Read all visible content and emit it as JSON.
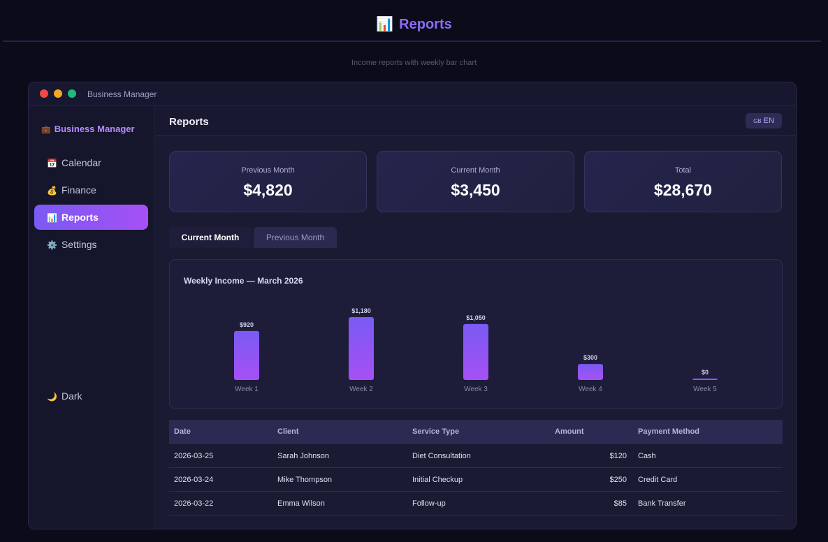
{
  "page": {
    "emoji": "📊",
    "title": "Reports",
    "subtitle": "Income reports with weekly bar chart"
  },
  "window": {
    "title": "Business Manager"
  },
  "sidebar": {
    "brand_emoji": "💼",
    "brand": "Business Manager",
    "items": [
      {
        "emoji": "📅",
        "label": "Calendar"
      },
      {
        "emoji": "💰",
        "label": "Finance"
      },
      {
        "emoji": "📊",
        "label": "Reports"
      },
      {
        "emoji": "⚙️",
        "label": "Settings"
      }
    ],
    "active_index": 2,
    "theme_emoji": "🌙",
    "theme_label": "Dark"
  },
  "main": {
    "title": "Reports",
    "lang_flag": "GB",
    "lang_label": "EN"
  },
  "cards": [
    {
      "label": "Previous Month",
      "value": "$4,820"
    },
    {
      "label": "Current Month",
      "value": "$3,450"
    },
    {
      "label": "Total",
      "value": "$28,670"
    }
  ],
  "tabs": [
    {
      "label": "Current Month",
      "active": true
    },
    {
      "label": "Previous Month",
      "active": false
    }
  ],
  "chart_data": {
    "type": "bar",
    "title": "Weekly Income — March 2026",
    "categories": [
      "Week 1",
      "Week 2",
      "Week 3",
      "Week 4",
      "Week 5"
    ],
    "values": [
      920,
      1180,
      1050,
      300,
      0
    ],
    "value_labels": [
      "$920",
      "$1,180",
      "$1,050",
      "$300",
      "$0"
    ],
    "ylim": [
      0,
      1180
    ],
    "colors": {
      "top": "#7a5af3",
      "bottom": "#a650f5"
    }
  },
  "table": {
    "headers": [
      "Date",
      "Client",
      "Service Type",
      "Amount",
      "Payment Method"
    ],
    "rows": [
      {
        "date": "2026-03-25",
        "client": "Sarah Johnson",
        "service": "Diet Consultation",
        "amount": "$120",
        "payment": "Cash"
      },
      {
        "date": "2026-03-24",
        "client": "Mike Thompson",
        "service": "Initial Checkup",
        "amount": "$250",
        "payment": "Credit Card"
      },
      {
        "date": "2026-03-22",
        "client": "Emma Wilson",
        "service": "Follow-up",
        "amount": "$85",
        "payment": "Bank Transfer"
      }
    ]
  }
}
